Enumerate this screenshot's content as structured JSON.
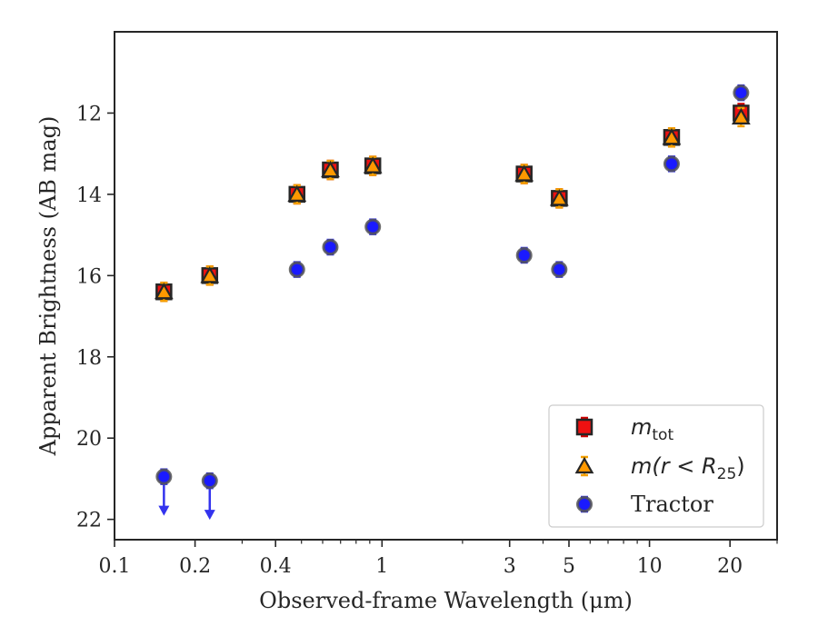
{
  "chart_data": {
    "type": "scatter",
    "title": "",
    "xlabel": "Observed-frame Wavelength (μm)",
    "ylabel": "Apparent Brightness (AB mag)",
    "xscale": "log",
    "xlim": [
      0.1,
      30
    ],
    "ylim": [
      22.5,
      10
    ],
    "y_inverted": true,
    "x_ticks": [
      {
        "value": 0.1,
        "label": "0.1"
      },
      {
        "value": 0.2,
        "label": "0.2"
      },
      {
        "value": 0.4,
        "label": "0.4"
      },
      {
        "value": 1,
        "label": "1"
      },
      {
        "value": 3,
        "label": "3"
      },
      {
        "value": 5,
        "label": "5"
      },
      {
        "value": 10,
        "label": "10"
      },
      {
        "value": 20,
        "label": "20"
      }
    ],
    "y_ticks": [
      {
        "value": 12,
        "label": "12"
      },
      {
        "value": 14,
        "label": "14"
      },
      {
        "value": 16,
        "label": "16"
      },
      {
        "value": 18,
        "label": "18"
      },
      {
        "value": 20,
        "label": "20"
      },
      {
        "value": 22,
        "label": "22"
      }
    ],
    "grid": false,
    "legend_position": "bottom-right",
    "series": [
      {
        "name": "m_tot",
        "legend_main": "m",
        "legend_sub": "tot",
        "marker": "square",
        "color": "#ee1111",
        "errcolor": "#cc0000",
        "x": [
          0.153,
          0.227,
          0.481,
          0.641,
          0.924,
          3.4,
          4.6,
          12.1,
          22.0
        ],
        "y": [
          16.4,
          16.0,
          14.0,
          13.4,
          13.3,
          13.5,
          14.1,
          12.6,
          12.0
        ]
      },
      {
        "name": "m(r < R25)",
        "legend_main": "m(r < R",
        "legend_sub": "25",
        "legend_end": ")",
        "marker": "triangle",
        "color": "#ff9900",
        "errcolor": "#f5a000",
        "x": [
          0.153,
          0.227,
          0.481,
          0.641,
          0.924,
          3.4,
          4.6,
          12.1,
          22.0
        ],
        "y": [
          16.4,
          16.0,
          14.0,
          13.4,
          13.3,
          13.5,
          14.1,
          12.6,
          12.1
        ]
      },
      {
        "name": "Tractor",
        "marker": "circle",
        "color": "#1a1aff",
        "errcolor": "#3333ee",
        "x": [
          0.153,
          0.227,
          0.481,
          0.641,
          0.924,
          3.4,
          4.6,
          12.1,
          22.0
        ],
        "y": [
          20.95,
          21.05,
          15.85,
          15.3,
          14.8,
          15.5,
          15.85,
          13.25,
          11.5
        ],
        "upper_limit": [
          true,
          true,
          false,
          false,
          false,
          false,
          false,
          false,
          false
        ]
      }
    ]
  }
}
